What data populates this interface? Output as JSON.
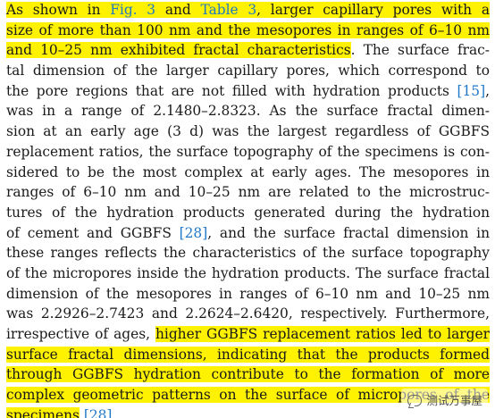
{
  "paragraph": {
    "lines": [
      [
        {
          "t": "As shown in ",
          "hl": true
        },
        {
          "t": "Fig. 3",
          "hl": true,
          "ref": true
        },
        {
          "t": " and ",
          "hl": true
        },
        {
          "t": "Table 3",
          "hl": true,
          "ref": true
        },
        {
          "t": ", larger capillary pores with a",
          "hl": true
        }
      ],
      [
        {
          "t": "size of more than 100 nm and the mesopores in ranges of 6–10 nm",
          "hl": true
        }
      ],
      [
        {
          "t": "and 10–25 nm exhibited fractal characteristics",
          "hl": true
        },
        {
          "t": ". The surface frac-"
        }
      ],
      [
        {
          "t": "tal dimension of the larger capillary pores, which correspond to"
        }
      ],
      [
        {
          "t": "the pore regions that are not filled with hydration products "
        },
        {
          "t": "[15]",
          "ref": true
        },
        {
          "t": ","
        }
      ],
      [
        {
          "t": "was in a range of 2.1480–2.8323. As the surface fractal dimen-"
        }
      ],
      [
        {
          "t": "sion at an early age (3 d) was the largest regardless of GGBFS"
        }
      ],
      [
        {
          "t": "replacement ratios, the surface topography of the specimens is con-"
        }
      ],
      [
        {
          "t": "sidered to be the most complex at early ages. The mesopores in"
        }
      ],
      [
        {
          "t": "ranges of 6–10 nm and 10–25 nm are related to the microstruc-"
        }
      ],
      [
        {
          "t": "tures of the hydration products generated during the hydration"
        }
      ],
      [
        {
          "t": "of cement and GGBFS "
        },
        {
          "t": "[28]",
          "ref": true
        },
        {
          "t": ", and the surface fractal dimension in"
        }
      ],
      [
        {
          "t": "these ranges reflects the characteristics of the surface topography"
        }
      ],
      [
        {
          "t": "of the micropores inside the hydration products. The surface fractal"
        }
      ],
      [
        {
          "t": "dimension of the mesopores in ranges of 6–10 nm and 10–25 nm"
        }
      ],
      [
        {
          "t": "was 2.2926–2.7423 and 2.2624–2.6420, respectively. Furthermore,"
        }
      ],
      [
        {
          "t": "irrespective of ages, "
        },
        {
          "t": "higher GGBFS replacement ratios led to larger",
          "hl": true
        }
      ],
      [
        {
          "t": "surface fractal dimensions, indicating that the products formed",
          "hl": true
        }
      ],
      [
        {
          "t": "through GGBFS hydration contribute to the formation of more",
          "hl": true
        }
      ],
      [
        {
          "t": "complex geometric patterns on the surface of micropores of the",
          "hl": true
        }
      ],
      [
        {
          "t": "specimens",
          "hl": true
        },
        {
          "t": " "
        },
        {
          "t": "[28]",
          "ref": true
        },
        {
          "t": "."
        }
      ]
    ]
  },
  "watermark": {
    "text": "测试万事屋",
    "icon": "chat-bubble-icon"
  }
}
